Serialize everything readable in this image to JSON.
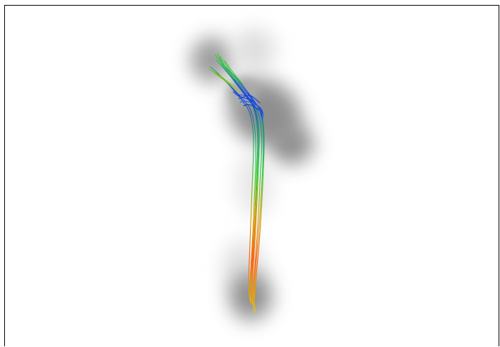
{
  "image": {
    "subject": "tractography-fiber-bundle",
    "background_color": "#ffffff",
    "frame_color": "#000000",
    "shadow_color": "#7a7a7a"
  },
  "fiber_bundle": {
    "gradient_colors": [
      "#ffcc00",
      "#ff5500",
      "#33cc33",
      "#0044ff"
    ]
  }
}
